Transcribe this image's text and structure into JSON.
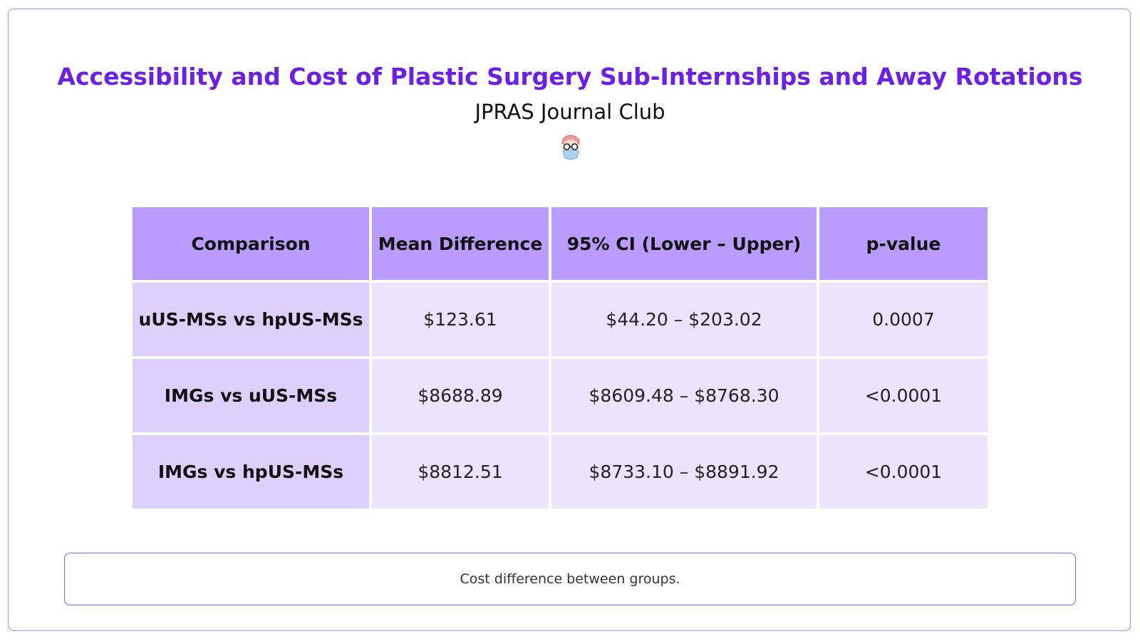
{
  "header": {
    "title": "Accessibility and Cost of Plastic Surgery Sub-Internships and Away Rotations",
    "subtitle": "JPRAS Journal Club"
  },
  "table": {
    "columns": [
      "Comparison",
      "Mean Difference",
      "95% CI (Lower – Upper)",
      "p-value"
    ],
    "rows": [
      [
        "uUS-MSs vs hpUS-MSs",
        "$123.61",
        "$44.20 – $203.02",
        "0.0007"
      ],
      [
        "IMGs vs uUS-MSs",
        "$8688.89",
        "$8609.48 – $8768.30",
        "<0.0001"
      ],
      [
        "IMGs vs hpUS-MSs",
        "$8812.51",
        "$8733.10 – $8891.92",
        "<0.0001"
      ]
    ]
  },
  "caption": "Cost difference between groups."
}
